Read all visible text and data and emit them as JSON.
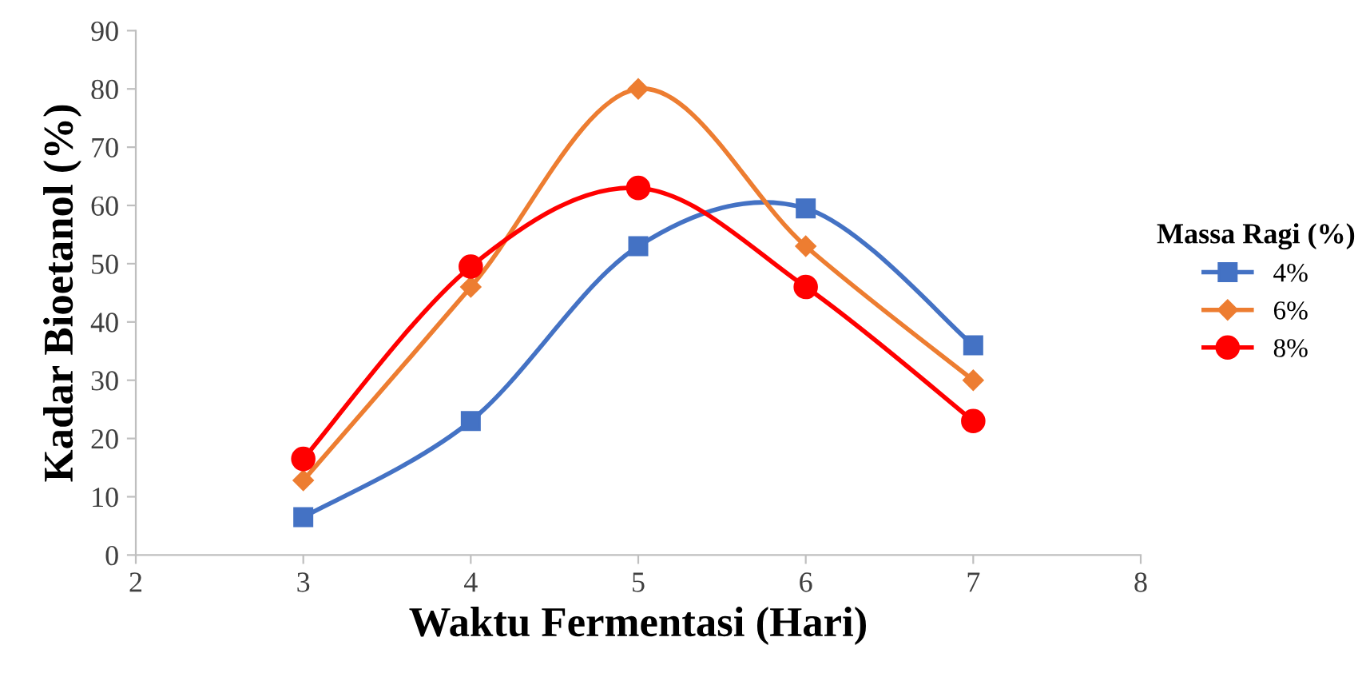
{
  "chart_data": {
    "type": "line",
    "xlabel": "Waktu Fermentasi (Hari)",
    "ylabel": "Kadar Bioetanol (%)",
    "legend_title": "Massa Ragi (%)",
    "legend": "right",
    "grid": false,
    "x": [
      3,
      4,
      5,
      6,
      7
    ],
    "xlim": [
      2,
      8
    ],
    "xticks": [
      2,
      3,
      4,
      5,
      6,
      7,
      8
    ],
    "ylim": [
      0,
      90
    ],
    "yticks": [
      0,
      10,
      20,
      30,
      40,
      50,
      60,
      70,
      80,
      90
    ],
    "series": [
      {
        "name": "4%",
        "color": "#4472c4",
        "marker": "square",
        "values": [
          6.5,
          23,
          53,
          59.5,
          36
        ]
      },
      {
        "name": "6%",
        "color": "#ed7d31",
        "marker": "diamond",
        "values": [
          12.8,
          46,
          80,
          53,
          30
        ]
      },
      {
        "name": "8%",
        "color": "#ff0000",
        "marker": "circle",
        "values": [
          16.5,
          49.5,
          63,
          46,
          23
        ]
      }
    ]
  }
}
